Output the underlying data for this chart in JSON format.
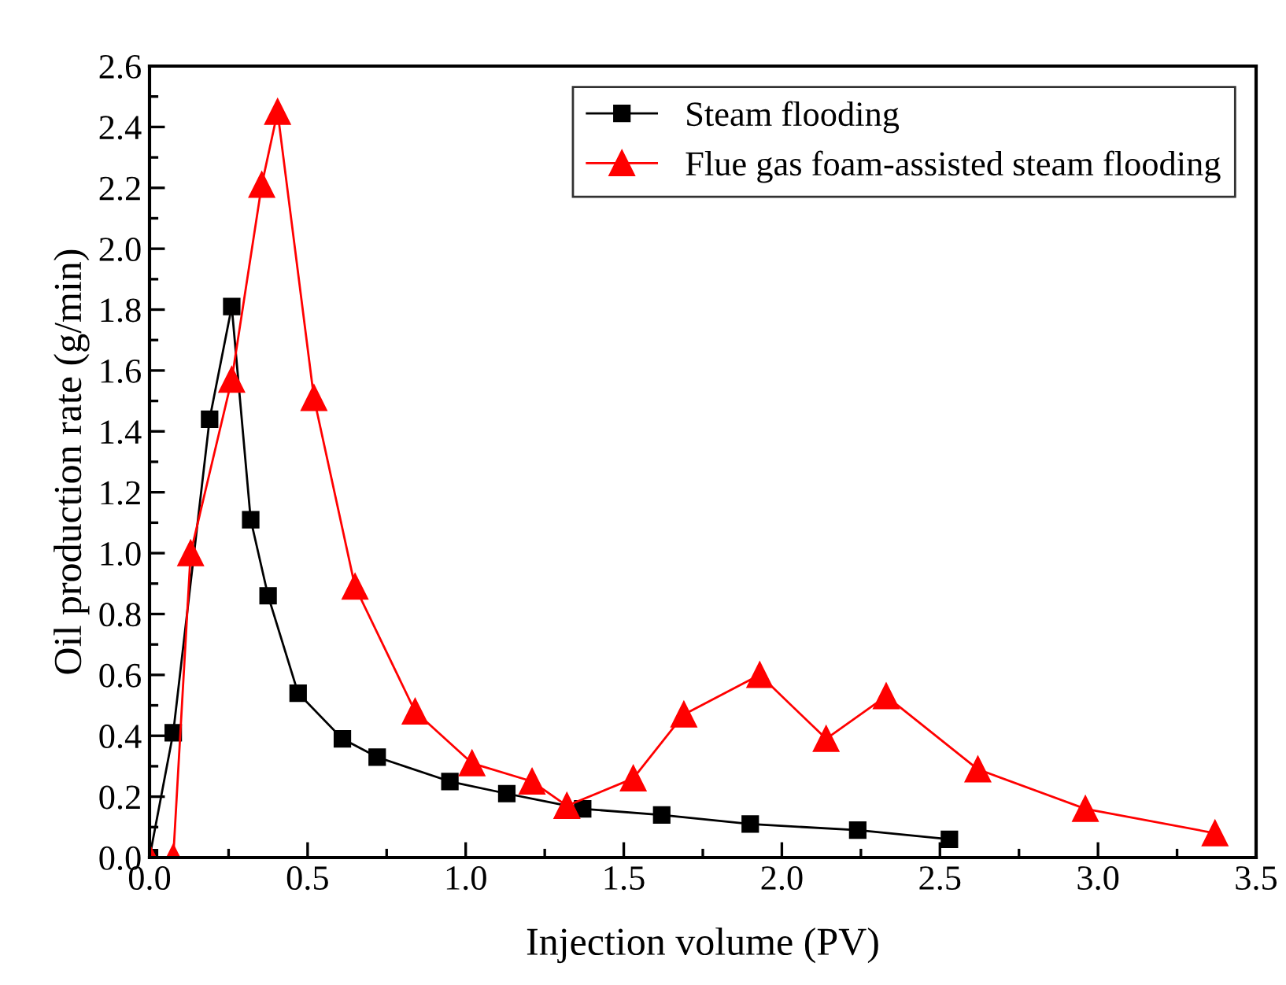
{
  "chart_data": {
    "type": "line",
    "xlabel": "Injection volume (PV)",
    "ylabel": "Oil production rate (g/min)",
    "xlim": [
      0,
      3.5
    ],
    "xticks": [
      {
        "value": 0,
        "label": "0.0"
      },
      0.5,
      {
        "value": 1,
        "label": "1.0"
      },
      1.5,
      {
        "value": 2,
        "label": "2.0"
      },
      2.5,
      {
        "value": 3,
        "label": "3.0"
      },
      3.5
    ],
    "ylim": [
      0,
      2.6
    ],
    "yticks": [
      {
        "value": 0,
        "label": "0.0"
      },
      0.2,
      0.4,
      0.6,
      0.8,
      {
        "value": 1,
        "label": "1.0"
      },
      1.2,
      1.4,
      1.6,
      1.8,
      {
        "value": 2,
        "label": "2.0"
      },
      2.2,
      2.4,
      2.6
    ],
    "legend": "top right",
    "grid": false,
    "series": [
      {
        "name": "Steam flooding",
        "color": "#000000",
        "marker": "square",
        "x": [
          0,
          0.075,
          0.19,
          0.26,
          0.32,
          0.375,
          0.47,
          0.61,
          0.72,
          0.95,
          1.13,
          1.37,
          1.62,
          1.9,
          2.24,
          2.53
        ],
        "values": [
          0,
          0.41,
          1.44,
          1.81,
          1.11,
          0.86,
          0.54,
          0.39,
          0.33,
          0.25,
          0.21,
          0.16,
          0.14,
          0.11,
          0.09,
          0.06
        ]
      },
      {
        "name": "Flue gas foam-assisted steam flooding",
        "color": "#ff0000",
        "marker": "triangle",
        "x": [
          0,
          0.075,
          0.13,
          0.26,
          0.355,
          0.405,
          0.52,
          0.65,
          0.84,
          1.02,
          1.21,
          1.32,
          1.53,
          1.69,
          1.93,
          2.14,
          2.33,
          2.62,
          2.96,
          3.37
        ],
        "values": [
          0,
          0,
          1.0,
          1.57,
          2.21,
          2.45,
          1.51,
          0.89,
          0.48,
          0.31,
          0.25,
          0.17,
          0.26,
          0.47,
          0.6,
          0.39,
          0.53,
          0.29,
          0.16,
          0.08
        ]
      }
    ]
  }
}
